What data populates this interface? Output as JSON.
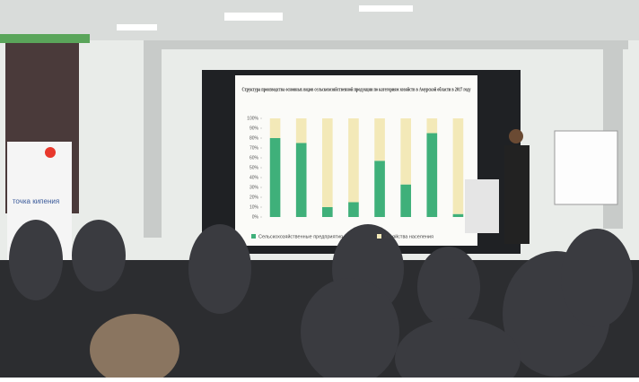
{
  "banner": {
    "label": "точка кипения"
  },
  "slide": {
    "title": "Структура производства основных видов сельскохозяйственной продукции по категориям хозяйств в Амурской области в 2017 году",
    "chart_data": {
      "type": "stacked-bar",
      "series": [
        {
          "name": "Сельскохозяйственные предприятия",
          "color": "#3fb07a",
          "values": [
            80,
            75,
            10,
            15,
            57,
            33,
            85,
            3
          ]
        },
        {
          "name": "Хозяйства населения",
          "color": "#f3e9b8",
          "values": [
            20,
            25,
            90,
            85,
            43,
            67,
            15,
            97
          ]
        }
      ],
      "ylim": [
        0,
        100
      ],
      "yticks": [
        {
          "value": 0,
          "label": "0%"
        },
        {
          "value": 10,
          "label": "10%"
        },
        {
          "value": 20,
          "label": "20%"
        },
        {
          "value": 30,
          "label": "30%"
        },
        {
          "value": 40,
          "label": "40%"
        },
        {
          "value": 50,
          "label": "50%"
        },
        {
          "value": 60,
          "label": "60%"
        },
        {
          "value": 70,
          "label": "70%"
        },
        {
          "value": 80,
          "label": "80%"
        },
        {
          "value": 90,
          "label": "90%"
        },
        {
          "value": 100,
          "label": "100%"
        }
      ]
    }
  }
}
